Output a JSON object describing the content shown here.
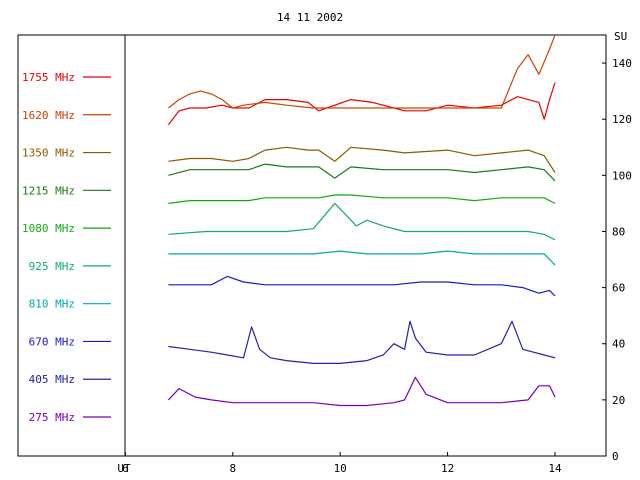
{
  "chart_data": {
    "type": "line",
    "title": "14 11 2002",
    "xlabel": "UT",
    "ylabel": "SU",
    "xlim": [
      4.0,
      14.95
    ],
    "ylim": [
      0,
      150
    ],
    "x_ticks": [
      6,
      8,
      10,
      12,
      14
    ],
    "y_ticks": [
      0,
      20,
      40,
      60,
      80,
      100,
      120,
      140
    ],
    "grid": false,
    "legend_position": "left",
    "series": [
      {
        "name": "1755 MHz",
        "color": "#ee0000",
        "x": [
          6.8,
          7.0,
          7.2,
          7.5,
          7.8,
          8.0,
          8.3,
          8.6,
          9.0,
          9.4,
          9.6,
          9.9,
          10.2,
          10.6,
          11.0,
          11.2,
          11.6,
          12.0,
          12.5,
          13.0,
          13.3,
          13.5,
          13.7,
          13.8,
          13.9,
          14.0
        ],
        "y": [
          118,
          123,
          124,
          124,
          125,
          124,
          124,
          127,
          127,
          126,
          123,
          125,
          127,
          126,
          124,
          123,
          123,
          125,
          124,
          125,
          128,
          127,
          126,
          120,
          127,
          133
        ]
      },
      {
        "name": "1620 MHz",
        "color": "#cc4400",
        "x": [
          6.8,
          7.0,
          7.2,
          7.4,
          7.6,
          7.8,
          8.0,
          8.2,
          8.6,
          9.0,
          9.5,
          13.0,
          13.3,
          13.5,
          13.7,
          13.9,
          14.0
        ],
        "y": [
          124,
          127,
          129,
          130,
          129,
          127,
          124,
          125,
          126,
          125,
          124,
          124,
          138,
          143,
          136,
          145,
          150
        ]
      },
      {
        "name": "1350 MHz",
        "color": "#8b5a00",
        "x": [
          6.8,
          7.2,
          7.6,
          8.0,
          8.3,
          8.6,
          9.0,
          9.4,
          9.6,
          9.9,
          10.2,
          10.8,
          11.2,
          12.0,
          12.5,
          13.0,
          13.5,
          13.8,
          14.0
        ],
        "y": [
          105,
          106,
          106,
          105,
          106,
          109,
          110,
          109,
          109,
          105,
          110,
          109,
          108,
          109,
          107,
          108,
          109,
          107,
          101
        ]
      },
      {
        "name": "1215 MHz",
        "color": "#1a7a1a",
        "x": [
          6.8,
          7.2,
          7.6,
          8.0,
          8.3,
          8.6,
          9.0,
          9.4,
          9.6,
          9.9,
          10.2,
          10.8,
          11.2,
          12.0,
          12.5,
          13.0,
          13.5,
          13.8,
          14.0
        ],
        "y": [
          100,
          102,
          102,
          102,
          102,
          104,
          103,
          103,
          103,
          99,
          103,
          102,
          102,
          102,
          101,
          102,
          103,
          102,
          98
        ]
      },
      {
        "name": "1080 MHz",
        "color": "#11aa11",
        "x": [
          6.8,
          7.2,
          7.6,
          8.0,
          8.3,
          8.6,
          9.0,
          9.4,
          9.6,
          9.9,
          10.2,
          10.8,
          11.2,
          12.0,
          12.5,
          13.0,
          13.5,
          13.8,
          14.0
        ],
        "y": [
          90,
          91,
          91,
          91,
          91,
          92,
          92,
          92,
          92,
          93,
          93,
          92,
          92,
          92,
          91,
          92,
          92,
          92,
          90
        ]
      },
      {
        "name": "925 MHz",
        "color": "#12aa70",
        "x": [
          6.8,
          7.5,
          8.0,
          8.5,
          9.0,
          9.5,
          9.9,
          10.1,
          10.3,
          10.5,
          10.8,
          11.2,
          11.8,
          12.5,
          13.0,
          13.5,
          13.8,
          14.0
        ],
        "y": [
          79,
          80,
          80,
          80,
          80,
          81,
          90,
          86,
          82,
          84,
          82,
          80,
          80,
          80,
          80,
          80,
          79,
          77
        ]
      },
      {
        "name": "810 MHz",
        "color": "#00aaaa",
        "x": [
          6.8,
          7.5,
          8.0,
          8.5,
          9.0,
          9.5,
          10.0,
          10.5,
          11.0,
          11.5,
          12.0,
          12.5,
          13.0,
          13.5,
          13.8,
          14.0
        ],
        "y": [
          72,
          72,
          72,
          72,
          72,
          72,
          73,
          72,
          72,
          72,
          73,
          72,
          72,
          72,
          72,
          68
        ]
      },
      {
        "name": "670 MHz",
        "color": "#1a1acc",
        "x": [
          6.8,
          7.2,
          7.6,
          7.9,
          8.2,
          8.6,
          9.0,
          9.5,
          10.0,
          10.5,
          11.0,
          11.5,
          12.0,
          12.5,
          13.0,
          13.4,
          13.7,
          13.9,
          14.0
        ],
        "y": [
          61,
          61,
          61,
          64,
          62,
          61,
          61,
          61,
          61,
          61,
          61,
          62,
          62,
          61,
          61,
          60,
          58,
          59,
          57
        ]
      },
      {
        "name": "405 MHz",
        "color": "#2222aa",
        "x": [
          6.8,
          7.2,
          7.6,
          7.9,
          8.2,
          8.35,
          8.5,
          8.7,
          9.0,
          9.5,
          10.0,
          10.5,
          10.8,
          11.0,
          11.2,
          11.3,
          11.4,
          11.6,
          12.0,
          12.5,
          13.0,
          13.2,
          13.4,
          13.6,
          13.8,
          14.0
        ],
        "y": [
          39,
          38,
          37,
          36,
          35,
          46,
          38,
          35,
          34,
          33,
          33,
          34,
          36,
          40,
          38,
          48,
          42,
          37,
          36,
          36,
          40,
          48,
          38,
          37,
          36,
          35
        ]
      },
      {
        "name": "275 MHz",
        "color": "#7700bb",
        "x": [
          6.8,
          7.0,
          7.3,
          7.6,
          8.0,
          8.5,
          9.0,
          9.5,
          10.0,
          10.5,
          11.0,
          11.2,
          11.4,
          11.6,
          12.0,
          12.5,
          13.0,
          13.5,
          13.7,
          13.9,
          14.0
        ],
        "y": [
          20,
          24,
          21,
          20,
          19,
          19,
          19,
          19,
          18,
          18,
          19,
          20,
          28,
          22,
          19,
          19,
          19,
          20,
          25,
          25,
          21
        ]
      }
    ]
  }
}
